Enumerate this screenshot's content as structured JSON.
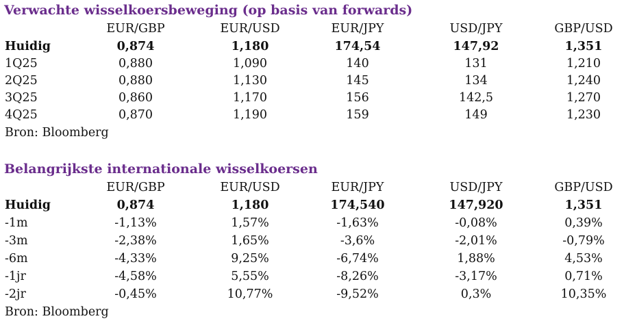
{
  "table1": {
    "title": "Verwachte wisselkoersbeweging (op basis van forwards)",
    "headers": [
      "",
      "EUR/GBP",
      "EUR/USD",
      "EUR/JPY",
      "USD/JPY",
      "GBP/USD"
    ],
    "rows": [
      [
        "Huidig",
        "0,874",
        "1,180",
        "174,54",
        "147,92",
        "1,351"
      ],
      [
        "1Q25",
        "0,880",
        "1,090",
        "140",
        "131",
        "1,210"
      ],
      [
        "2Q25",
        "0,880",
        "1,130",
        "145",
        "134",
        "1,240"
      ],
      [
        "3Q25",
        "0,860",
        "1,170",
        "156",
        "142,5",
        "1,270"
      ],
      [
        "4Q25",
        "0,870",
        "1,190",
        "159",
        "149",
        "1,230"
      ]
    ],
    "source": "Bron: Bloomberg"
  },
  "table2": {
    "title": "Belangrijkste internationale wisselkoersen",
    "headers": [
      "",
      "EUR/GBP",
      "EUR/USD",
      "EUR/JPY",
      "USD/JPY",
      "GBP/USD"
    ],
    "rows": [
      [
        "Huidig",
        "0,874",
        "1,180",
        "174,540",
        "147,920",
        "1,351"
      ],
      [
        "-1m",
        "-1,13%",
        "1,57%",
        "-1,63%",
        "-0,08%",
        "0,39%"
      ],
      [
        "-3m",
        "-2,38%",
        "1,65%",
        "-3,6%",
        "-2,01%",
        "-0,79%"
      ],
      [
        "-6m",
        "-4,33%",
        "9,25%",
        "-6,74%",
        "1,88%",
        "4,53%"
      ],
      [
        "-1jr",
        "-4,58%",
        "5,55%",
        "-8,26%",
        "-3,17%",
        "0,71%"
      ],
      [
        "-2jr",
        "-0,45%",
        "10,77%",
        "-9,52%",
        "0,3%",
        "10,35%"
      ]
    ],
    "source": "Bron: Bloomberg"
  }
}
